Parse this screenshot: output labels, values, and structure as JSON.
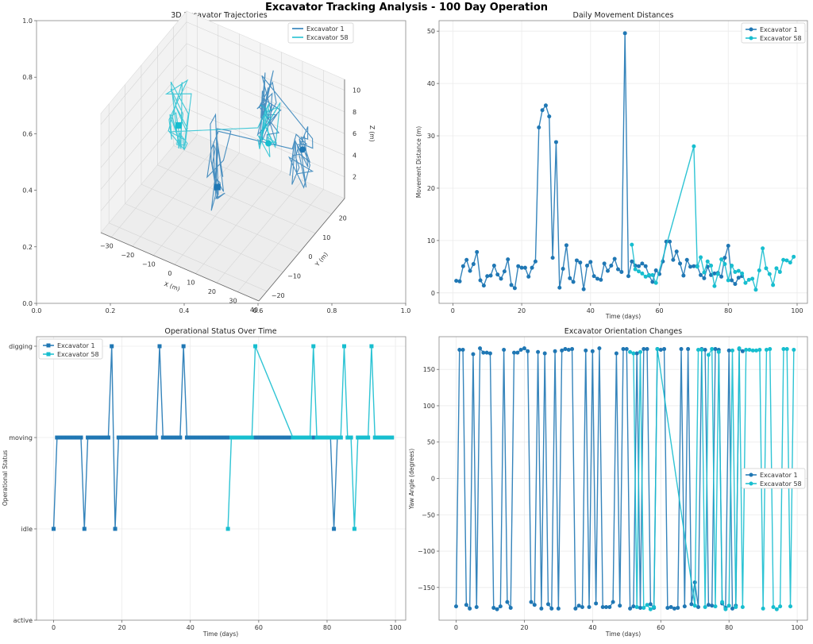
{
  "figure": {
    "suptitle": "Excavator Tracking Analysis - 100 Day Operation",
    "colors": {
      "excavator_1": "#1f77b4",
      "excavator_58": "#17becf"
    }
  },
  "chart_data": [
    {
      "id": "trajectories",
      "type": "line3d",
      "title": "3D Excavator Trajectories",
      "xlabel": "X (m)",
      "ylabel": "Y (m)",
      "zlabel": "Z (m)",
      "x_ticks": [
        "−30",
        "−20",
        "−10",
        "0",
        "10",
        "20",
        "30",
        "40"
      ],
      "y_ticks": [
        "−20",
        "−10",
        "0",
        "10",
        "20"
      ],
      "z_ticks": [
        "2",
        "4",
        "6",
        "8",
        "10"
      ],
      "outer_x_ticks": [
        "0.0",
        "0.2",
        "0.4",
        "0.6",
        "0.8",
        "1.0"
      ],
      "outer_y_ticks": [
        "0.0",
        "0.2",
        "0.4",
        "0.6",
        "0.8",
        "1.0"
      ],
      "legend": [
        "Excavator 1",
        "Excavator 58"
      ],
      "legend_position": "top-right",
      "series": [
        {
          "name": "Excavator 1",
          "clusters": [
            {
              "x": 5,
              "y": -5,
              "z_range": [
                2,
                10
              ]
            },
            {
              "x": 30,
              "y": 15,
              "z_range": [
                3,
                8
              ]
            },
            {
              "x": 10,
              "y": 20,
              "z_range": [
                4,
                11
              ]
            }
          ],
          "start_marker": {
            "x": 5,
            "y": -5,
            "z": 4,
            "shape": "square"
          },
          "end_marker": {
            "x": 30,
            "y": 15,
            "z": 6,
            "shape": "circle"
          }
        },
        {
          "name": "Excavator 58",
          "clusters": [
            {
              "x": -25,
              "y": 10,
              "z_range": [
                2,
                9
              ]
            },
            {
              "x": 10,
              "y": 20,
              "z_range": [
                3,
                8
              ]
            }
          ],
          "start_marker": {
            "x": -25,
            "y": 10,
            "z": 4.5,
            "shape": "square"
          },
          "end_marker": {
            "x": 10,
            "y": 20,
            "z": 4,
            "shape": "circle"
          }
        }
      ]
    },
    {
      "id": "movement",
      "type": "line",
      "title": "Daily Movement Distances",
      "xlabel": "Time (days)",
      "ylabel": "Movement Distance (m)",
      "xlim": [
        -4,
        103
      ],
      "ylim": [
        -2,
        52
      ],
      "x_ticks": [
        0,
        20,
        40,
        60,
        80,
        100
      ],
      "y_ticks": [
        0,
        10,
        20,
        30,
        40,
        50
      ],
      "grid": true,
      "legend_position": "top-right",
      "series": [
        {
          "name": "Excavator 1",
          "marker": "circle",
          "x": [
            1,
            2,
            3,
            4,
            5,
            6,
            7,
            8,
            9,
            10,
            11,
            12,
            13,
            14,
            15,
            16,
            17,
            18,
            19,
            20,
            21,
            22,
            23,
            24,
            25,
            26,
            27,
            28,
            29,
            30,
            31,
            32,
            33,
            34,
            35,
            36,
            37,
            38,
            39,
            40,
            41,
            42,
            43,
            44,
            45,
            46,
            47,
            48,
            49,
            50,
            51,
            52,
            53,
            54,
            55,
            56,
            57,
            58,
            59,
            60,
            61,
            62,
            63,
            64,
            65,
            66,
            67,
            68,
            69,
            70,
            71,
            72,
            73,
            74,
            75,
            76,
            77,
            78,
            79,
            80,
            81,
            82,
            83,
            84
          ],
          "y": [
            2.3,
            2.2,
            5.1,
            6.3,
            4.2,
            5.5,
            7.8,
            2.4,
            1.4,
            3.2,
            3.3,
            5.2,
            3.5,
            2.7,
            4.1,
            6.4,
            1.5,
            0.9,
            5.1,
            4.8,
            4.8,
            3.1,
            4.8,
            6.0,
            31.6,
            34.9,
            35.8,
            33.7,
            6.7,
            28.8,
            1.0,
            4.6,
            9.1,
            2.8,
            2.1,
            6.2,
            5.8,
            0.7,
            5.2,
            5.9,
            3.2,
            2.7,
            2.5,
            5.6,
            4.2,
            5.2,
            6.5,
            4.5,
            4.0,
            49.6,
            3.2,
            6.0,
            5.2,
            5.1,
            5.6,
            5.1,
            3.3,
            2.1,
            4.3,
            3.6,
            6.0,
            9.8,
            9.8,
            6.3,
            7.9,
            5.6,
            3.3,
            6.3,
            5.0,
            5.1,
            5.1,
            3.4,
            2.8,
            5.0,
            3.4,
            3.7,
            3.8,
            3.1,
            6.7,
            9.0,
            2.4,
            1.7,
            2.9,
            3.2
          ]
        },
        {
          "name": "Excavator 58",
          "marker": "circle",
          "x": [
            52,
            53,
            54,
            55,
            56,
            57,
            58,
            59,
            70,
            71,
            72,
            73,
            74,
            75,
            76,
            77,
            78,
            79,
            80,
            81,
            82,
            83,
            84,
            85,
            86,
            87,
            88,
            89,
            90,
            91,
            92,
            93,
            94,
            95,
            96,
            97,
            98,
            99
          ],
          "y": [
            9.2,
            4.5,
            4.1,
            3.7,
            3.1,
            3.4,
            3.4,
            1.9,
            28.0,
            5.0,
            6.8,
            3.9,
            6.0,
            5.2,
            1.3,
            3.6,
            6.4,
            5.5,
            2.4,
            5.2,
            4.0,
            4.2,
            3.7,
            1.9,
            2.5,
            2.7,
            0.6,
            4.3,
            8.5,
            4.7,
            3.6,
            1.5,
            4.7,
            4.0,
            6.3,
            6.2,
            5.8,
            6.9
          ]
        }
      ]
    },
    {
      "id": "status",
      "type": "line",
      "title": "Operational Status Over Time",
      "xlabel": "Time (days)",
      "ylabel": "Operational Status",
      "xlim": [
        -5,
        103
      ],
      "x_ticks": [
        0,
        20,
        40,
        60,
        80,
        100
      ],
      "categories_y": [
        "active",
        "idle",
        "moving",
        "digging"
      ],
      "grid": true,
      "legend_position": "top-left",
      "series": [
        {
          "name": "Excavator 1",
          "marker": "square",
          "x": [
            0,
            1,
            2,
            3,
            4,
            5,
            6,
            7,
            8,
            9,
            10,
            11,
            12,
            13,
            14,
            15,
            16,
            17,
            18,
            19,
            20,
            21,
            22,
            23,
            24,
            25,
            26,
            27,
            28,
            29,
            30,
            31,
            32,
            33,
            34,
            35,
            36,
            37,
            38,
            39,
            40,
            41,
            42,
            43,
            44,
            45,
            46,
            47,
            48,
            49,
            50,
            51,
            52,
            53,
            54,
            55,
            56,
            57,
            58,
            59,
            60,
            61,
            62,
            63,
            64,
            65,
            66,
            67,
            68,
            69,
            70,
            71,
            72,
            73,
            74,
            75,
            76,
            77,
            78,
            79,
            80,
            81,
            82,
            83,
            84
          ],
          "y": [
            "idle",
            "moving",
            "moving",
            "moving",
            "moving",
            "moving",
            "moving",
            "moving",
            "moving",
            "idle",
            "moving",
            "moving",
            "moving",
            "moving",
            "moving",
            "moving",
            "moving",
            "digging",
            "idle",
            "moving",
            "moving",
            "moving",
            "moving",
            "moving",
            "moving",
            "moving",
            "moving",
            "moving",
            "moving",
            "moving",
            "moving",
            "digging",
            "moving",
            "moving",
            "moving",
            "moving",
            "moving",
            "moving",
            "digging",
            "moving",
            "moving",
            "moving",
            "moving",
            "moving",
            "moving",
            "moving",
            "moving",
            "moving",
            "moving",
            "moving",
            "moving",
            "moving",
            "moving",
            "moving",
            "moving",
            "moving",
            "moving",
            "moving",
            "moving",
            "moving",
            "moving",
            "moving",
            "moving",
            "moving",
            "moving",
            "moving",
            "moving",
            "moving",
            "moving",
            "moving",
            "moving",
            "moving",
            "moving",
            "moving",
            "moving",
            "moving",
            "moving",
            "moving",
            "moving",
            "moving",
            "moving",
            "moving",
            "idle",
            "moving",
            "moving"
          ]
        },
        {
          "name": "Excavator 58",
          "marker": "square",
          "x": [
            51,
            52,
            53,
            54,
            55,
            56,
            57,
            58,
            59,
            70,
            71,
            72,
            73,
            74,
            75,
            76,
            77,
            78,
            79,
            80,
            81,
            82,
            83,
            84,
            85,
            86,
            87,
            88,
            89,
            90,
            91,
            92,
            93,
            94,
            95,
            96,
            97,
            98,
            99
          ],
          "y": [
            "idle",
            "moving",
            "moving",
            "moving",
            "moving",
            "moving",
            "moving",
            "moving",
            "digging",
            "moving",
            "moving",
            "moving",
            "moving",
            "moving",
            "moving",
            "digging",
            "moving",
            "moving",
            "moving",
            "moving",
            "moving",
            "moving",
            "moving",
            "moving",
            "digging",
            "moving",
            "moving",
            "idle",
            "moving",
            "moving",
            "moving",
            "moving",
            "digging",
            "moving",
            "moving",
            "moving",
            "moving",
            "moving",
            "moving"
          ]
        }
      ]
    },
    {
      "id": "orientation",
      "type": "line",
      "title": "Excavator Orientation Changes",
      "xlabel": "Time (days)",
      "ylabel": "Yaw Angle (degrees)",
      "xlim": [
        -5,
        103
      ],
      "ylim": [
        -195,
        195
      ],
      "x_ticks": [
        0,
        20,
        40,
        60,
        80,
        100
      ],
      "y_ticks": [
        -150,
        -100,
        -50,
        0,
        50,
        100,
        150
      ],
      "grid": true,
      "legend_position": "center-right",
      "series": [
        {
          "name": "Excavator 1",
          "marker": "circle",
          "x": [
            0,
            1,
            2,
            3,
            4,
            5,
            6,
            7,
            8,
            9,
            10,
            11,
            12,
            13,
            14,
            15,
            16,
            17,
            18,
            19,
            20,
            21,
            22,
            23,
            24,
            25,
            26,
            27,
            28,
            29,
            30,
            31,
            32,
            33,
            34,
            35,
            36,
            37,
            38,
            39,
            40,
            41,
            42,
            43,
            44,
            45,
            46,
            47,
            48,
            49,
            50,
            51,
            52,
            53,
            54,
            55,
            56,
            57,
            58,
            59,
            60,
            61,
            62,
            63,
            64,
            65,
            66,
            67,
            68,
            69,
            70,
            71,
            72,
            73,
            74,
            75,
            76,
            77,
            78,
            79,
            80,
            81,
            82,
            83,
            84
          ],
          "y": [
            -176,
            177,
            177,
            -174,
            -179,
            171,
            -177,
            179,
            173,
            173,
            172,
            -178,
            -180,
            -176,
            177,
            -170,
            -178,
            173,
            173,
            177,
            179,
            175,
            -170,
            -174,
            174,
            -179,
            172,
            -173,
            -179,
            175,
            -179,
            176,
            178,
            177,
            178,
            -179,
            -175,
            -177,
            176,
            -177,
            175,
            -172,
            179,
            -177,
            -177,
            -177,
            -170,
            172,
            -175,
            178,
            178,
            -179,
            -176,
            172,
            -178,
            178,
            178,
            -173,
            -178,
            178,
            177,
            178,
            -178,
            -177,
            -179,
            -178,
            178,
            -176,
            178,
            -173,
            -143,
            -177,
            178,
            177,
            -174,
            -175,
            178,
            177,
            -172,
            -178,
            176,
            -179,
            -175,
            178,
            175
          ]
        },
        {
          "name": "Excavator 58",
          "marker": "circle",
          "x": [
            51,
            52,
            53,
            54,
            55,
            56,
            57,
            58,
            59,
            70,
            71,
            72,
            73,
            74,
            75,
            76,
            77,
            78,
            79,
            80,
            81,
            82,
            83,
            84,
            85,
            86,
            87,
            88,
            89,
            90,
            91,
            92,
            93,
            94,
            95,
            96,
            97,
            98,
            99
          ],
          "y": [
            174,
            172,
            -177,
            174,
            -178,
            -174,
            -180,
            -177,
            178,
            -175,
            177,
            177,
            -177,
            170,
            178,
            -176,
            174,
            -170,
            -180,
            -175,
            176,
            -177,
            179,
            -177,
            177,
            177,
            176,
            176,
            177,
            -179,
            177,
            178,
            -177,
            -180,
            -176,
            178,
            178,
            -176,
            177
          ]
        }
      ]
    }
  ]
}
